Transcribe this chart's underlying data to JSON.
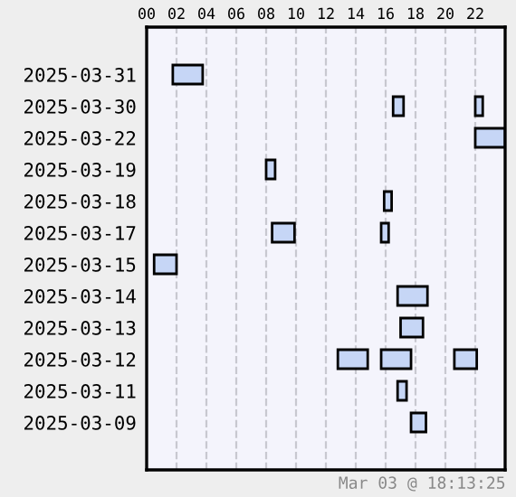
{
  "chart_data": {
    "type": "bar",
    "orientation": "horizontal",
    "categories": [
      null,
      "2025-03-31",
      "2025-03-30",
      "2025-03-22",
      "2025-03-19",
      "2025-03-18",
      "2025-03-17",
      "2025-03-15",
      "2025-03-14",
      "2025-03-13",
      "2025-03-12",
      "2025-03-11",
      "2025-03-09",
      null
    ],
    "series": [
      {
        "color": "#c6d6f6",
        "base": [
          null,
          1.75,
          16.5,
          22,
          8,
          15.9,
          8.4,
          0.5,
          16.8,
          17,
          12.8,
          16.8,
          17.7,
          null
        ],
        "values": [
          null,
          2,
          0.7,
          2,
          0.6,
          0.5,
          1.5,
          1.5,
          2,
          1.5,
          2,
          0.6,
          1,
          null
        ]
      },
      {
        "color": "#c6d6f6",
        "base": [
          null,
          null,
          22,
          null,
          null,
          null,
          15.7,
          null,
          null,
          null,
          15.7,
          null,
          null,
          null
        ],
        "values": [
          null,
          null,
          0.5,
          null,
          null,
          null,
          0.5,
          null,
          null,
          null,
          2,
          null,
          null,
          null
        ]
      },
      {
        "color": "#c6d6f6",
        "base": [
          null,
          null,
          null,
          null,
          null,
          null,
          null,
          null,
          null,
          null,
          20.6,
          null,
          null,
          null
        ],
        "values": [
          null,
          null,
          null,
          null,
          null,
          null,
          null,
          null,
          null,
          null,
          1.5,
          null,
          null,
          null
        ]
      }
    ],
    "xlim": [
      0,
      24
    ],
    "xticks": [
      {
        "value": 0,
        "label": "00"
      },
      {
        "value": 2,
        "label": "02"
      },
      {
        "value": 4,
        "label": "04"
      },
      {
        "value": 6,
        "label": "06"
      },
      {
        "value": 8,
        "label": "08"
      },
      {
        "value": 10,
        "label": "10"
      },
      {
        "value": 12,
        "label": "12"
      },
      {
        "value": 14,
        "label": "14"
      },
      {
        "value": 16,
        "label": "16"
      },
      {
        "value": 18,
        "label": "18"
      },
      {
        "value": 20,
        "label": "20"
      },
      {
        "value": 22,
        "label": "22"
      }
    ],
    "grid": "x",
    "annotations": [
      "Mar 03 @ 18:13:25"
    ]
  }
}
